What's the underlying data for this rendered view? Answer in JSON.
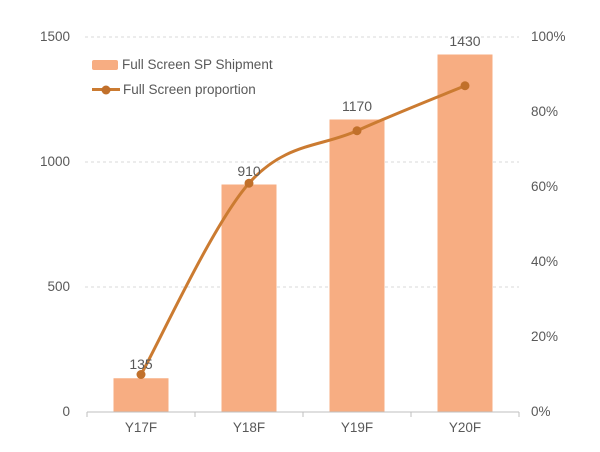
{
  "chart_data": {
    "type": "bar",
    "subtype": "combo bar + smoothed line, dual axis",
    "categories": [
      "Y17F",
      "Y18F",
      "Y19F",
      "Y20F"
    ],
    "series": [
      {
        "name": "Full Screen SP Shipment",
        "type": "bar",
        "axis": "left",
        "values": [
          135,
          910,
          1170,
          1430
        ],
        "value_labels": [
          "135",
          "910",
          "1170",
          "1430"
        ]
      },
      {
        "name": "Full Screen proportion",
        "type": "line",
        "axis": "right",
        "values": [
          10,
          61,
          75,
          87
        ],
        "unit": "%"
      }
    ],
    "left_axis": {
      "min": 0,
      "max": 1500,
      "tick_values": [
        0,
        500,
        1000,
        1500
      ],
      "tick_labels": [
        "0",
        "500",
        "1000",
        "1500"
      ]
    },
    "right_axis": {
      "min": 0,
      "max": 100,
      "tick_values": [
        0,
        20,
        40,
        60,
        80,
        100
      ],
      "tick_labels": [
        "0%",
        "20%",
        "40%",
        "60%",
        "80%",
        "100%"
      ]
    },
    "title": "",
    "xlabel": "",
    "ylabel": "",
    "legend_position": "top-left inside plot",
    "grid": "horizontal dashed lines at left-axis ticks"
  },
  "colors": {
    "bar_fill": "#F7AD82",
    "line_stroke": "#CB7B31",
    "dot_fill": "#C1702B",
    "text": "#595959",
    "axis_line": "#BFBFBF",
    "gridline": "#D9D9D9",
    "background": "#FFFFFF"
  }
}
